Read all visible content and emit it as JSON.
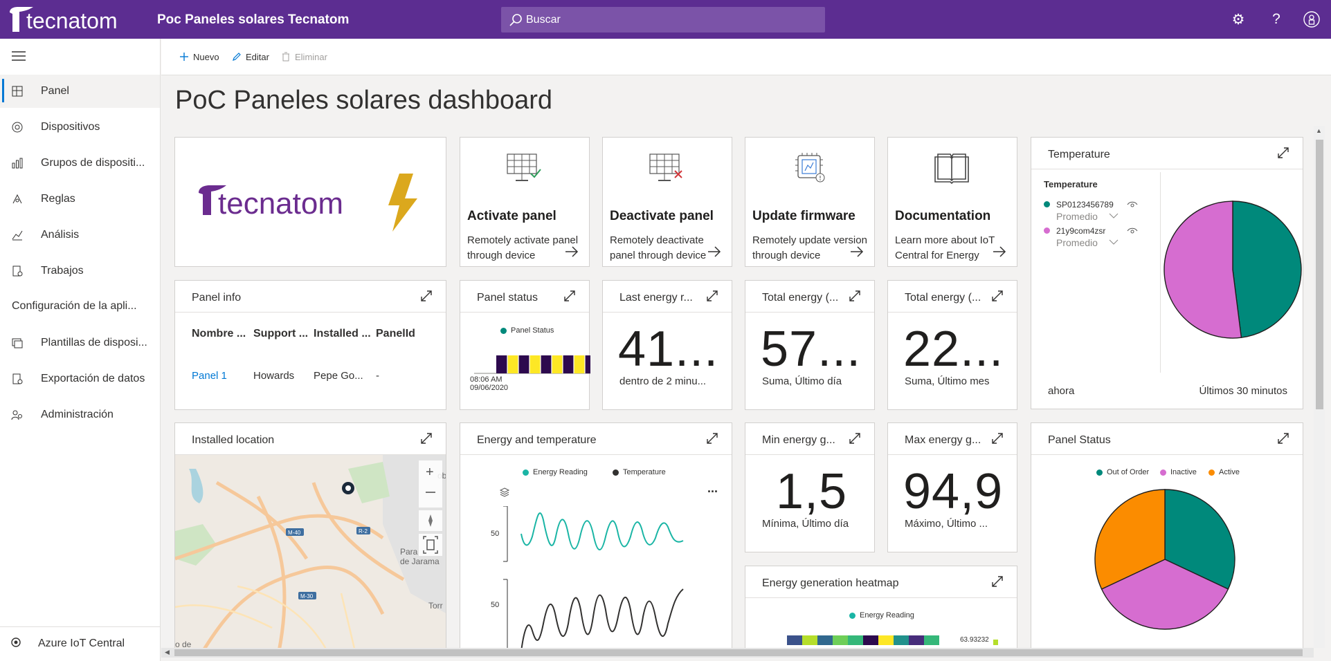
{
  "header": {
    "brand": "tecnatom",
    "app_title": "Poc Paneles solares Tecnatom",
    "search_placeholder": "Buscar",
    "settings": "⚙",
    "help": "?",
    "user": "♙"
  },
  "toolbar": {
    "new": "Nuevo",
    "edit": "Editar",
    "delete": "Eliminar"
  },
  "sidebar": {
    "items": [
      {
        "label": "Panel",
        "icon": "dashboard-icon"
      },
      {
        "label": "Dispositivos",
        "icon": "devices-icon"
      },
      {
        "label": "Grupos de dispositi...",
        "icon": "device-groups-icon"
      },
      {
        "label": "Reglas",
        "icon": "rules-icon"
      },
      {
        "label": "Análisis",
        "icon": "analytics-icon"
      },
      {
        "label": "Trabajos",
        "icon": "jobs-icon"
      }
    ],
    "section": "Configuración de la apli...",
    "config_items": [
      {
        "label": "Plantillas de disposi...",
        "icon": "templates-icon"
      },
      {
        "label": "Exportación de datos",
        "icon": "data-export-icon"
      },
      {
        "label": "Administración",
        "icon": "administration-icon"
      }
    ],
    "footer": "Azure IoT Central"
  },
  "page_title": "PoC Paneles solares dashboard",
  "colors": {
    "header": "#5c2d91",
    "teal": "#00897b",
    "pink": "#d66dd0",
    "orange": "#fb8c00",
    "dark_purple": "#2d0a4e",
    "yellow": "#fde725",
    "accent": "#0078d4"
  },
  "logo_tile": {
    "brand": "tecnatom"
  },
  "actions": [
    {
      "title": "Activate panel",
      "desc": "Remotely activate panel through device",
      "icon": "solar-panel-check-icon"
    },
    {
      "title": "Deactivate panel",
      "desc": "Remotely deactivate panel through device",
      "icon": "solar-panel-x-icon"
    },
    {
      "title": "Update firmware",
      "desc": "Remotely update version through device",
      "icon": "firmware-chip-icon"
    },
    {
      "title": "Documentation",
      "desc": "Learn more about IoT Central for Energy",
      "icon": "book-icon"
    }
  ],
  "panel_info": {
    "title": "Panel info",
    "columns": [
      "Nombre ...",
      "Support ...",
      "Installed ...",
      "PanelId"
    ],
    "row": [
      "Panel 1",
      "Howards",
      "Pepe Go...",
      "-"
    ]
  },
  "panel_status_tile": {
    "title": "Panel status",
    "legend": "Panel Status",
    "time": "08:06 AM",
    "date": "09/06/2020"
  },
  "kpis": [
    {
      "title": "Last energy r...",
      "value": "41...",
      "sub": "dentro de 2 minu..."
    },
    {
      "title": "Total energy (...",
      "value": "57...",
      "sub": "Suma, Último día"
    },
    {
      "title": "Total energy (...",
      "value": "22...",
      "sub": "Suma, Último mes"
    },
    {
      "title": "Min energy g...",
      "value": "1,5",
      "sub": "Mínima, Último día"
    },
    {
      "title": "Max energy g...",
      "value": "94,9",
      "sub": "Máximo, Último ..."
    }
  ],
  "temperature_tile": {
    "title": "Temperature",
    "legend_title": "Temperature",
    "series": [
      {
        "name": "SP0123456789",
        "agg": "Promedio"
      },
      {
        "name": "21y9com4zsr",
        "agg": "Promedio"
      }
    ],
    "footer_left": "ahora",
    "footer_right": "Últimos 30 minutos"
  },
  "location_tile": {
    "title": "Installed location",
    "labels": [
      "M-40",
      "R-2",
      "M-30",
      "Para",
      "de Jarama",
      "Torr",
      "o de",
      "ob"
    ]
  },
  "energy_temp_tile": {
    "title": "Energy and temperature",
    "legend": [
      "Energy Reading",
      "Temperature"
    ],
    "tick": "50",
    "more": "..."
  },
  "heatmap_tile": {
    "title": "Energy generation heatmap",
    "legend": "Energy Reading",
    "max_label": "63.93232"
  },
  "panel_status_pie": {
    "title": "Panel Status",
    "legend": [
      "Out of Order",
      "Inactive",
      "Active"
    ]
  },
  "chart_data": [
    {
      "type": "pie",
      "title": "Temperature",
      "labels": [
        "SP0123456789",
        "21y9com4zsr"
      ],
      "values": [
        48,
        52
      ]
    },
    {
      "type": "pie",
      "title": "Panel Status",
      "labels": [
        "Out of Order",
        "Inactive",
        "Active"
      ],
      "values": [
        32,
        36,
        32
      ]
    }
  ]
}
